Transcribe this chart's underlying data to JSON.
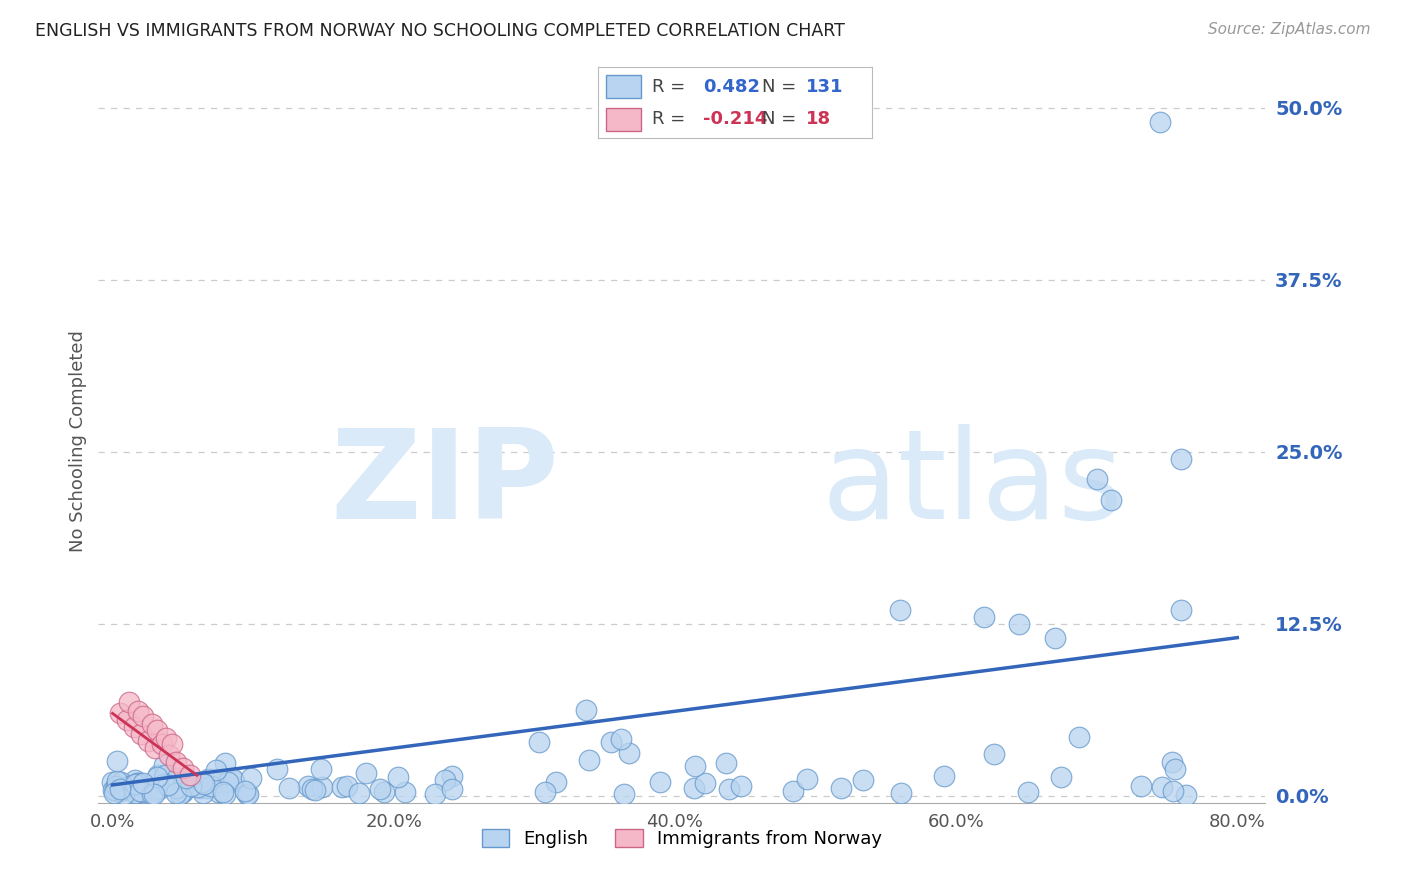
{
  "title": "ENGLISH VS IMMIGRANTS FROM NORWAY NO SCHOOLING COMPLETED CORRELATION CHART",
  "source": "Source: ZipAtlas.com",
  "ylabel": "No Schooling Completed",
  "watermark_zip": "ZIP",
  "watermark_atlas": "atlas",
  "english_R": 0.482,
  "english_N": 131,
  "norway_R": -0.214,
  "norway_N": 18,
  "xlim": [
    -0.01,
    0.82
  ],
  "ylim": [
    -0.005,
    0.52
  ],
  "xtick_vals": [
    0.0,
    0.2,
    0.4,
    0.6,
    0.8
  ],
  "xtick_labels": [
    "0.0%",
    "20.0%",
    "40.0%",
    "60.0%",
    "80.0%"
  ],
  "ytick_vals": [
    0.0,
    0.125,
    0.25,
    0.375,
    0.5
  ],
  "ytick_labels": [
    "0.0%",
    "12.5%",
    "25.0%",
    "37.5%",
    "50.0%"
  ],
  "english_face": "#b8d4f0",
  "english_edge": "#6699cc",
  "norway_face": "#f5b8c8",
  "norway_edge": "#cc6688",
  "english_line": "#3366bb",
  "norway_line": "#cc3355",
  "grid_color": "#cccccc",
  "title_color": "#222222",
  "right_tick_color": "#3366bb",
  "legend_R_color": "#3366cc",
  "norway_legend_R_color": "#cc3355"
}
